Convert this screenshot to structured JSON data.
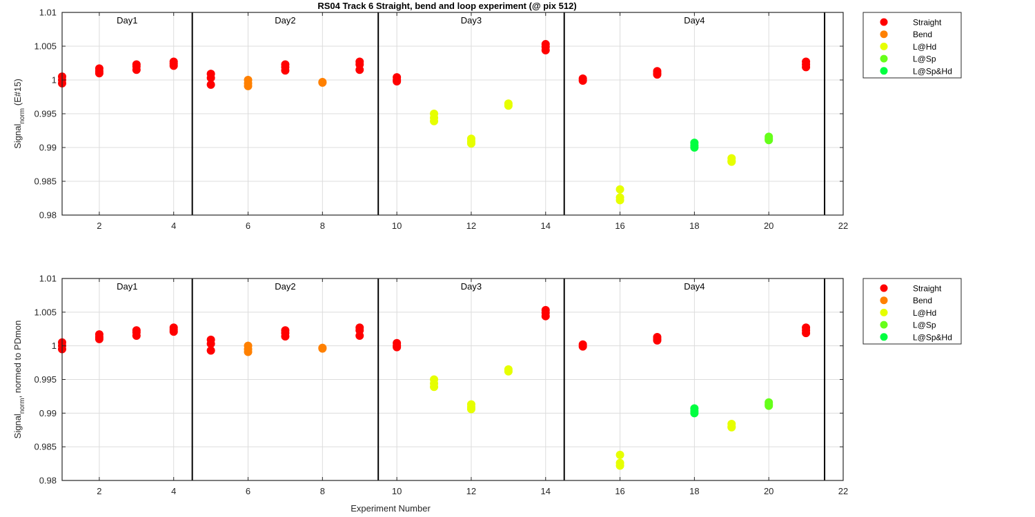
{
  "figure_title": "RS04 Track 6  Straight, bend and loop experiment (@ pix 512)",
  "legend_entries": [
    {
      "label": "Straight",
      "color": "#ff0000"
    },
    {
      "label": "Bend",
      "color": "#ff8000"
    },
    {
      "label": "L@Hd",
      "color": "#e6ff00"
    },
    {
      "label": "L@Sp",
      "color": "#66ff1a"
    },
    {
      "label": "L@Sp&Hd",
      "color": "#00ff40"
    }
  ],
  "chart_data": [
    {
      "type": "scatter",
      "title": "RS04 Track 6  Straight, bend and loop experiment (@ pix 512)",
      "xlabel": "",
      "ylabel": "Signal",
      "ylabel_sub": "norm",
      "ylabel_suffix": " (E#15)",
      "xlim": [
        1,
        22
      ],
      "ylim": [
        0.98,
        1.01
      ],
      "x_ticks": [
        2,
        4,
        6,
        8,
        10,
        12,
        14,
        16,
        18,
        20,
        22
      ],
      "y_ticks": [
        0.98,
        0.985,
        0.99,
        0.995,
        1,
        1.005,
        1.01
      ],
      "y_tick_labels": [
        "0.98",
        "0.985",
        "0.99",
        "0.995",
        "1",
        "1.005",
        "1.01"
      ],
      "grid": true,
      "legend_position": "outside-right",
      "day_dividers": [
        4.5,
        9.5,
        14.5,
        21.5
      ],
      "day_labels": [
        {
          "text": "Day1",
          "x": 2.75
        },
        {
          "text": "Day2",
          "x": 7
        },
        {
          "text": "Day3",
          "x": 12
        },
        {
          "text": "Day4",
          "x": 18
        }
      ],
      "series": [
        {
          "name": "Straight",
          "color": "#ff0000",
          "points": [
            [
              1,
              1.0005
            ],
            [
              1,
              1.0
            ],
            [
              1,
              0.9995
            ],
            [
              2,
              1.0017
            ],
            [
              2,
              1.0013
            ],
            [
              2,
              1.001
            ],
            [
              3,
              1.0023
            ],
            [
              3,
              1.002
            ],
            [
              3,
              1.0015
            ],
            [
              4,
              1.0027
            ],
            [
              4,
              1.0024
            ],
            [
              4,
              1.0021
            ],
            [
              5,
              1.0009
            ],
            [
              5,
              1.0003
            ],
            [
              5,
              0.9993
            ],
            [
              7,
              1.0023
            ],
            [
              7,
              1.0019
            ],
            [
              7,
              1.0014
            ],
            [
              9,
              1.0027
            ],
            [
              9,
              1.0023
            ],
            [
              9,
              1.0015
            ],
            [
              10,
              1.0004
            ],
            [
              10,
              1.0
            ],
            [
              10,
              0.9998
            ],
            [
              14,
              1.0053
            ],
            [
              14,
              1.0049
            ],
            [
              14,
              1.0044
            ],
            [
              15,
              1.0002
            ],
            [
              15,
              0.9999
            ],
            [
              17,
              1.0013
            ],
            [
              17,
              1.001
            ],
            [
              17,
              1.0008
            ],
            [
              21,
              1.0027
            ],
            [
              21,
              1.0023
            ],
            [
              21,
              1.0019
            ]
          ]
        },
        {
          "name": "Bend",
          "color": "#ff8000",
          "points": [
            [
              6,
              1.0
            ],
            [
              6,
              0.9995
            ],
            [
              6,
              0.9991
            ],
            [
              8,
              0.9997
            ],
            [
              8,
              0.9996
            ]
          ]
        },
        {
          "name": "L@Hd",
          "color": "#e6ff00",
          "points": [
            [
              11,
              0.995
            ],
            [
              11,
              0.9944
            ],
            [
              11,
              0.9939
            ],
            [
              12,
              0.9913
            ],
            [
              12,
              0.9909
            ],
            [
              12,
              0.9906
            ],
            [
              13,
              0.9965
            ],
            [
              13,
              0.9962
            ],
            [
              16,
              0.9838
            ],
            [
              16,
              0.9826
            ],
            [
              16,
              0.9822
            ],
            [
              19,
              0.9884
            ],
            [
              19,
              0.988
            ],
            [
              19,
              0.9879
            ]
          ]
        },
        {
          "name": "L@Sp",
          "color": "#66ff1a",
          "points": [
            [
              20,
              0.9916
            ],
            [
              20,
              0.9913
            ],
            [
              20,
              0.9911
            ]
          ]
        },
        {
          "name": "L@Sp&Hd",
          "color": "#00ff40",
          "points": [
            [
              18,
              0.9907
            ],
            [
              18,
              0.9903
            ],
            [
              18,
              0.99
            ]
          ]
        }
      ]
    },
    {
      "type": "scatter",
      "title": "",
      "xlabel": "Experiment Number",
      "ylabel": "Signal",
      "ylabel_sub": "norm",
      "ylabel_suffix": ", normed to PDmon",
      "xlim": [
        1,
        22
      ],
      "ylim": [
        0.98,
        1.01
      ],
      "x_ticks": [
        2,
        4,
        6,
        8,
        10,
        12,
        14,
        16,
        18,
        20,
        22
      ],
      "y_ticks": [
        0.98,
        0.985,
        0.99,
        0.995,
        1,
        1.005,
        1.01
      ],
      "y_tick_labels": [
        "0.98",
        "0.985",
        "0.99",
        "0.995",
        "1",
        "1.005",
        "1.01"
      ],
      "grid": true,
      "legend_position": "outside-right",
      "day_dividers": [
        4.5,
        9.5,
        14.5,
        21.5
      ],
      "day_labels": [
        {
          "text": "Day1",
          "x": 2.75
        },
        {
          "text": "Day2",
          "x": 7
        },
        {
          "text": "Day3",
          "x": 12
        },
        {
          "text": "Day4",
          "x": 18
        }
      ],
      "series": [
        {
          "name": "Straight",
          "color": "#ff0000",
          "points": [
            [
              1,
              1.0005
            ],
            [
              1,
              1.0
            ],
            [
              1,
              0.9995
            ],
            [
              2,
              1.0017
            ],
            [
              2,
              1.0013
            ],
            [
              2,
              1.001
            ],
            [
              3,
              1.0023
            ],
            [
              3,
              1.002
            ],
            [
              3,
              1.0015
            ],
            [
              4,
              1.0027
            ],
            [
              4,
              1.0024
            ],
            [
              4,
              1.0021
            ],
            [
              5,
              1.0009
            ],
            [
              5,
              1.0003
            ],
            [
              5,
              0.9993
            ],
            [
              7,
              1.0023
            ],
            [
              7,
              1.0019
            ],
            [
              7,
              1.0014
            ],
            [
              9,
              1.0027
            ],
            [
              9,
              1.0023
            ],
            [
              9,
              1.0015
            ],
            [
              10,
              1.0004
            ],
            [
              10,
              1.0
            ],
            [
              10,
              0.9998
            ],
            [
              14,
              1.0053
            ],
            [
              14,
              1.0049
            ],
            [
              14,
              1.0044
            ],
            [
              15,
              1.0002
            ],
            [
              15,
              0.9999
            ],
            [
              17,
              1.0013
            ],
            [
              17,
              1.001
            ],
            [
              17,
              1.0008
            ],
            [
              21,
              1.0027
            ],
            [
              21,
              1.0023
            ],
            [
              21,
              1.0019
            ]
          ]
        },
        {
          "name": "Bend",
          "color": "#ff8000",
          "points": [
            [
              6,
              1.0
            ],
            [
              6,
              0.9995
            ],
            [
              6,
              0.9991
            ],
            [
              8,
              0.9997
            ],
            [
              8,
              0.9996
            ]
          ]
        },
        {
          "name": "L@Hd",
          "color": "#e6ff00",
          "points": [
            [
              11,
              0.995
            ],
            [
              11,
              0.9944
            ],
            [
              11,
              0.9939
            ],
            [
              12,
              0.9913
            ],
            [
              12,
              0.9909
            ],
            [
              12,
              0.9906
            ],
            [
              13,
              0.9965
            ],
            [
              13,
              0.9962
            ],
            [
              16,
              0.9838
            ],
            [
              16,
              0.9826
            ],
            [
              16,
              0.9822
            ],
            [
              19,
              0.9884
            ],
            [
              19,
              0.988
            ],
            [
              19,
              0.9879
            ]
          ]
        },
        {
          "name": "L@Sp",
          "color": "#66ff1a",
          "points": [
            [
              20,
              0.9916
            ],
            [
              20,
              0.9913
            ],
            [
              20,
              0.9911
            ]
          ]
        },
        {
          "name": "L@Sp&Hd",
          "color": "#00ff40",
          "points": [
            [
              18,
              0.9907
            ],
            [
              18,
              0.9903
            ],
            [
              18,
              0.99
            ]
          ]
        }
      ]
    }
  ]
}
